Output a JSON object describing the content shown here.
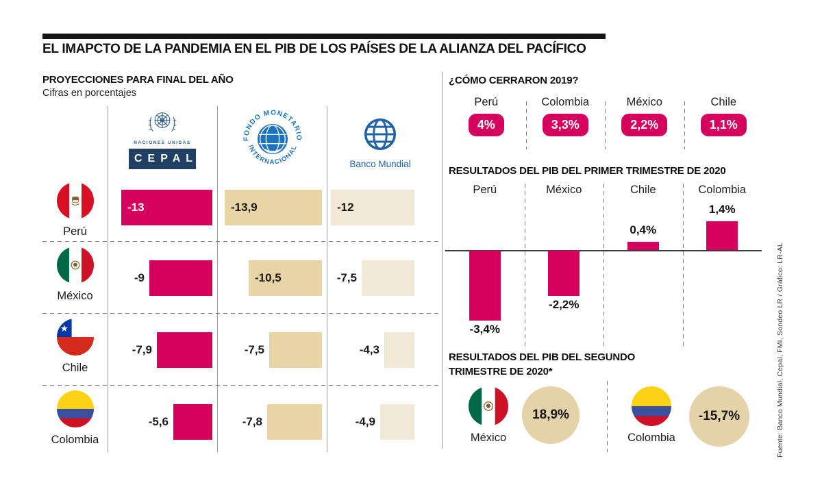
{
  "page": {
    "title": "EL IMAPCTO DE LA PANDEMIA EN EL PIB DE LOS PAÍSES DE LA ALIANZA DEL PACÍFICO",
    "source_credit": "Fuente: Banco Mundial, Cepal, FMI, Sondeo LR / Gráfico: LR-AL"
  },
  "colors": {
    "pink": "#D6005F",
    "tan": "#E8D4A4",
    "light_tan": "#F2E8D6",
    "circle_tan": "#E4D2A9",
    "un_blue": "#2E5C8A",
    "cepal_navy": "#203F63",
    "fmi_blue": "#1E73BE",
    "bm_blue": "#2163A5",
    "grid_line": "#9A9A9A"
  },
  "institutions": {
    "cepal": {
      "caption": "NACIONES UNIDAS",
      "label": "CEPAL"
    },
    "fmi": {
      "ring_top": "FONDO MONETARIO",
      "ring_bottom": "INTERNACIONAL"
    },
    "banco_mundial": {
      "label": "Banco Mundial"
    }
  },
  "chart_data": [
    {
      "id": "proyecciones-final-ano",
      "type": "bar",
      "orientation": "horizontal",
      "title": "PROYECCIONES PARA FINAL DEL AÑO",
      "subtitle": "Cifras en porcentajes",
      "unit": "percent",
      "categories": [
        "Perú",
        "México",
        "Chile",
        "Colombia"
      ],
      "series": [
        {
          "name": "CEPAL",
          "color_key": "pink",
          "values": [
            -13,
            -9,
            -7.9,
            -5.6
          ],
          "labels": [
            "-13",
            "-9",
            "-7,9",
            "-5,6"
          ]
        },
        {
          "name": "FMI",
          "color_key": "tan",
          "values": [
            -13.9,
            -10.5,
            -7.5,
            -7.8
          ],
          "labels": [
            "-13,9",
            "-10,5",
            "-7,5",
            "-7,8"
          ]
        },
        {
          "name": "Banco Mundial",
          "color_key": "light_tan",
          "values": [
            -12,
            -7.5,
            -4.3,
            -4.9
          ],
          "labels": [
            "-12",
            "-7,5",
            "-4,3",
            "-4,9"
          ]
        }
      ]
    },
    {
      "id": "cierre-2019",
      "type": "bar",
      "subtype": "value-badges",
      "title": "¿CÓMO CERRARON 2019?",
      "categories": [
        "Perú",
        "Colombia",
        "México",
        "Chile"
      ],
      "values": [
        4,
        3.3,
        2.2,
        1.1
      ],
      "labels": [
        "4%",
        "3,3%",
        "2,2%",
        "1,1%"
      ]
    },
    {
      "id": "pib-primer-trimestre-2020",
      "type": "bar",
      "orientation": "vertical",
      "title": "RESULTADOS DEL PIB DEL PRIMER TRIMESTRE DE 2020",
      "baseline": 0,
      "categories": [
        "Perú",
        "México",
        "Chile",
        "Colombia"
      ],
      "values": [
        -3.4,
        -2.2,
        0.4,
        1.4
      ],
      "labels": [
        "-3,4%",
        "-2,2%",
        "0,4%",
        "1,4%"
      ]
    },
    {
      "id": "pib-segundo-trimestre-2020",
      "type": "bar",
      "subtype": "value-circles",
      "title": "RESULTADOS DEL PIB DEL SEGUNDO TRIMESTRE DE 2020*",
      "title_line1": "RESULTADOS DEL PIB DEL SEGUNDO",
      "title_line2": "TRIMESTRE DE 2020*",
      "categories": [
        "México",
        "Colombia"
      ],
      "values": [
        18.9,
        -15.7
      ],
      "labels": [
        "18,9%",
        "-15,7%"
      ]
    }
  ]
}
